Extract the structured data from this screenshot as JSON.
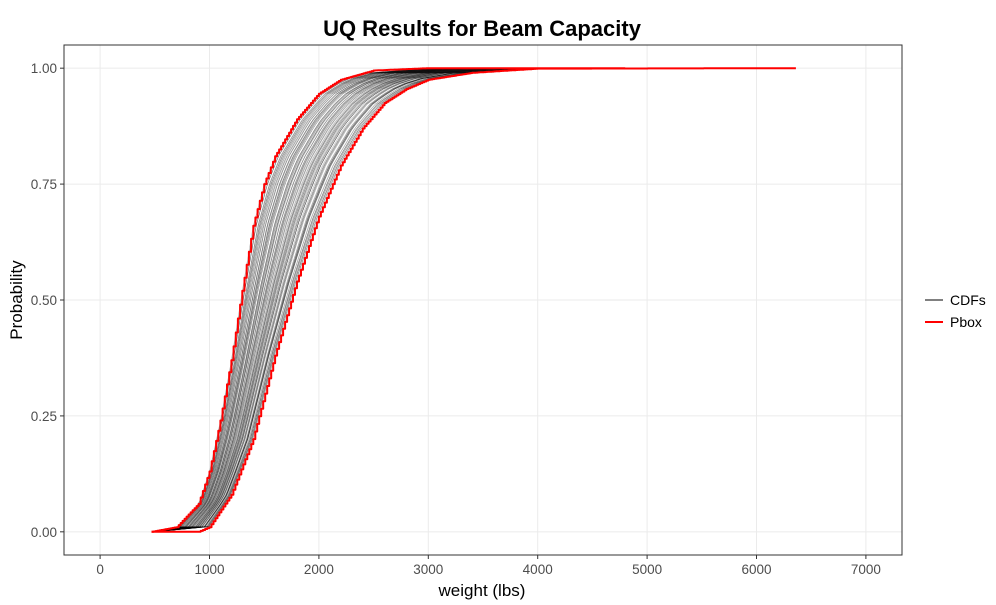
{
  "chart_data": {
    "type": "line",
    "title": "UQ Results for Beam Capacity",
    "xlabel": "weight (lbs)",
    "ylabel": "Probability",
    "xlim": [
      -330,
      7330
    ],
    "ylim": [
      -0.05,
      1.05
    ],
    "x_ticks": [
      0,
      1000,
      2000,
      3000,
      4000,
      5000,
      6000,
      7000
    ],
    "x_tick_labels": [
      "0",
      "1000",
      "2000",
      "3000",
      "4000",
      "5000",
      "6000",
      "7000"
    ],
    "y_ticks": [
      0,
      0.25,
      0.5,
      0.75,
      1.0
    ],
    "y_tick_labels": [
      "0.00",
      "0.25",
      "0.50",
      "0.75",
      "1.00"
    ],
    "grid": true,
    "legend_position": "right",
    "legend": [
      {
        "label": "CDFs",
        "color": "#000000"
      },
      {
        "label": "Pbox",
        "color": "#ff0000"
      }
    ],
    "series": [
      {
        "name": "CDFs",
        "color": "#000000",
        "style": "family of thin lines between the Pbox bounds",
        "count": 120,
        "x_range": [
          500,
          4000
        ]
      },
      {
        "name": "Pbox",
        "color": "#ff0000",
        "bounds": [
          {
            "bound": "upper",
            "points": [
              [
                470,
                0.0
              ],
              [
                700,
                0.01
              ],
              [
                900,
                0.06
              ],
              [
                1000,
                0.13
              ],
              [
                1100,
                0.24
              ],
              [
                1200,
                0.37
              ],
              [
                1300,
                0.52
              ],
              [
                1400,
                0.66
              ],
              [
                1500,
                0.75
              ],
              [
                1600,
                0.81
              ],
              [
                1800,
                0.89
              ],
              [
                2000,
                0.945
              ],
              [
                2200,
                0.975
              ],
              [
                2500,
                0.995
              ],
              [
                3000,
                1.0
              ],
              [
                4800,
                1.0
              ]
            ]
          },
          {
            "bound": "lower",
            "points": [
              [
                470,
                0.0
              ],
              [
                900,
                0.0
              ],
              [
                1000,
                0.01
              ],
              [
                1200,
                0.08
              ],
              [
                1400,
                0.2
              ],
              [
                1600,
                0.38
              ],
              [
                1800,
                0.54
              ],
              [
                2000,
                0.68
              ],
              [
                2200,
                0.79
              ],
              [
                2400,
                0.87
              ],
              [
                2600,
                0.925
              ],
              [
                2800,
                0.955
              ],
              [
                3000,
                0.975
              ],
              [
                3400,
                0.99
              ],
              [
                4000,
                0.999
              ],
              [
                6360,
                1.0
              ]
            ]
          }
        ]
      }
    ]
  }
}
